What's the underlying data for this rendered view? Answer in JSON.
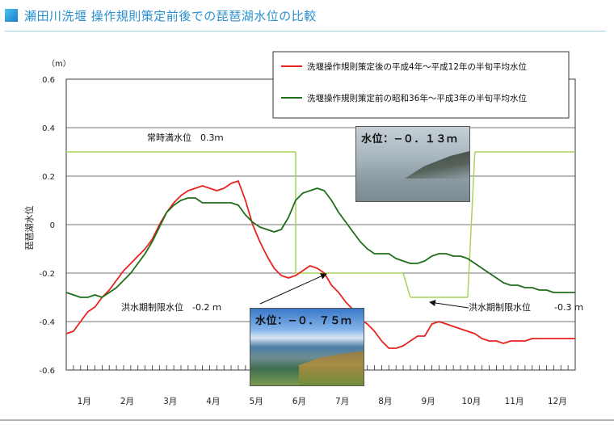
{
  "header": {
    "title": "瀬田川洗堰 操作規則策定前後での琵琶湖水位の比較"
  },
  "photos": [
    {
      "caption": "水位：−０．１３ｍ"
    },
    {
      "caption": "水位：−０．７５ｍ"
    }
  ],
  "chart_data": {
    "type": "line",
    "title": "瀬田川洗堰 操作規則策定前後での琵琶湖水位の比較",
    "ylabel": "琵琶湖水位",
    "yunit": "（m）",
    "ylim": [
      -0.6,
      0.6
    ],
    "yticks": [
      0.6,
      0.4,
      0.2,
      0,
      -0.2,
      -0.4,
      -0.6
    ],
    "ytick_labels": [
      "0.6",
      "0.4",
      "0.2",
      "0",
      "-0.2",
      "-0.4",
      "-0.6"
    ],
    "xlim": [
      1,
      72
    ],
    "x_unit": "半旬 (1年=72半旬)",
    "month_labels": [
      "1月",
      "2月",
      "3月",
      "4月",
      "5月",
      "6月",
      "7月",
      "8月",
      "9月",
      "10月",
      "11月",
      "12月"
    ],
    "grid": true,
    "legend_position": "top-right",
    "series": [
      {
        "name": "洗堰操作規則策定後の平成4年～平成12年の半旬平均水位",
        "color": "#e8231e",
        "x": [
          1,
          2,
          3,
          4,
          5,
          6,
          7,
          8,
          9,
          10,
          11,
          12,
          13,
          14,
          15,
          16,
          17,
          18,
          19,
          20,
          21,
          22,
          23,
          24,
          25,
          26,
          27,
          28,
          29,
          30,
          31,
          32,
          33,
          34,
          35,
          36,
          37,
          38,
          39,
          40,
          41,
          42,
          43,
          44,
          45,
          46,
          47,
          48,
          49,
          50,
          51,
          52,
          53,
          54,
          55,
          56,
          57,
          58,
          59,
          60,
          61,
          62,
          63,
          64,
          65,
          66,
          67,
          68,
          69,
          70,
          71,
          72
        ],
        "y": [
          -0.45,
          -0.44,
          -0.4,
          -0.36,
          -0.34,
          -0.3,
          -0.27,
          -0.23,
          -0.19,
          -0.16,
          -0.13,
          -0.1,
          -0.06,
          0.0,
          0.05,
          0.09,
          0.12,
          0.14,
          0.15,
          0.16,
          0.15,
          0.14,
          0.15,
          0.17,
          0.18,
          0.1,
          0.0,
          -0.07,
          -0.13,
          -0.18,
          -0.21,
          -0.22,
          -0.21,
          -0.19,
          -0.17,
          -0.18,
          -0.2,
          -0.25,
          -0.28,
          -0.32,
          -0.35,
          -0.39,
          -0.41,
          -0.44,
          -0.48,
          -0.51,
          -0.51,
          -0.5,
          -0.48,
          -0.46,
          -0.46,
          -0.41,
          -0.4,
          -0.41,
          -0.42,
          -0.43,
          -0.44,
          -0.45,
          -0.47,
          -0.48,
          -0.48,
          -0.49,
          -0.48,
          -0.48,
          -0.48,
          -0.47,
          -0.47,
          -0.47,
          -0.47,
          -0.47,
          -0.47,
          -0.47
        ]
      },
      {
        "name": "洗堰操作規則策定前の昭和36年～平成3年の半旬平均水位",
        "color": "#1f6e1a",
        "x": [
          1,
          2,
          3,
          4,
          5,
          6,
          7,
          8,
          9,
          10,
          11,
          12,
          13,
          14,
          15,
          16,
          17,
          18,
          19,
          20,
          21,
          22,
          23,
          24,
          25,
          26,
          27,
          28,
          29,
          30,
          31,
          32,
          33,
          34,
          35,
          36,
          37,
          38,
          39,
          40,
          41,
          42,
          43,
          44,
          45,
          46,
          47,
          48,
          49,
          50,
          51,
          52,
          53,
          54,
          55,
          56,
          57,
          58,
          59,
          60,
          61,
          62,
          63,
          64,
          65,
          66,
          67,
          68,
          69,
          70,
          71,
          72
        ],
        "y": [
          -0.28,
          -0.29,
          -0.3,
          -0.3,
          -0.29,
          -0.3,
          -0.28,
          -0.26,
          -0.23,
          -0.2,
          -0.16,
          -0.12,
          -0.07,
          -0.01,
          0.05,
          0.08,
          0.1,
          0.11,
          0.11,
          0.09,
          0.09,
          0.09,
          0.09,
          0.09,
          0.08,
          0.04,
          0.01,
          -0.01,
          -0.02,
          -0.03,
          -0.02,
          0.03,
          0.1,
          0.13,
          0.14,
          0.15,
          0.14,
          0.1,
          0.05,
          0.01,
          -0.03,
          -0.07,
          -0.1,
          -0.12,
          -0.12,
          -0.12,
          -0.14,
          -0.15,
          -0.16,
          -0.16,
          -0.15,
          -0.13,
          -0.12,
          -0.12,
          -0.13,
          -0.13,
          -0.14,
          -0.16,
          -0.18,
          -0.2,
          -0.22,
          -0.24,
          -0.25,
          -0.25,
          -0.26,
          -0.26,
          -0.27,
          -0.27,
          -0.28,
          -0.28,
          -0.28,
          -0.28
        ]
      }
    ],
    "reference_lines": {
      "color": "#a8d35a",
      "segments": [
        {
          "x": [
            1,
            33
          ],
          "y": [
            0.3,
            0.3
          ]
        },
        {
          "x": [
            33,
            33
          ],
          "y": [
            0.3,
            -0.2
          ]
        },
        {
          "x": [
            33,
            48
          ],
          "y": [
            -0.2,
            -0.2
          ]
        },
        {
          "x": [
            48,
            49
          ],
          "y": [
            -0.2,
            -0.3
          ]
        },
        {
          "x": [
            49,
            57
          ],
          "y": [
            -0.3,
            -0.3
          ]
        },
        {
          "x": [
            57,
            58
          ],
          "y": [
            -0.3,
            0.3
          ]
        },
        {
          "x": [
            58,
            72
          ],
          "y": [
            0.3,
            0.3
          ]
        }
      ]
    },
    "annotations": [
      {
        "text": "常時満水位　0.3ｍ"
      },
      {
        "text": "洪水期制限水位　-0.2 ｍ"
      },
      {
        "text": "洪水期制限水位"
      },
      {
        "text": "-0.3 ｍ"
      }
    ]
  }
}
